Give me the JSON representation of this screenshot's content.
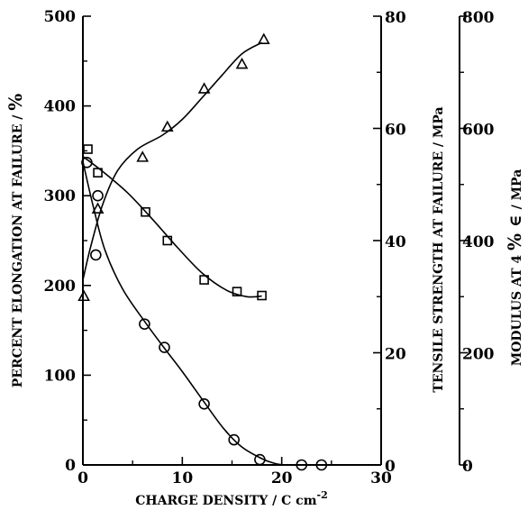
{
  "chart_data": {
    "type": "scatter",
    "xlabel": "CHARGE DENSITY / C cm",
    "xlabel_sup": "-2",
    "xlim": [
      0,
      30
    ],
    "xticks": [
      "0",
      "10",
      "20",
      "30"
    ],
    "axes": {
      "left": {
        "label_main": "PERCENT ELONGATION AT FAILURE /",
        "label_unit": "%",
        "lim": [
          0,
          500
        ],
        "ticks": [
          "0",
          "100",
          "200",
          "300",
          "400",
          "500"
        ]
      },
      "right1": {
        "label": "TENSILE STRENGTH AT FAILURE / MPa",
        "lim": [
          0,
          80
        ],
        "ticks": [
          "0",
          "20",
          "40",
          "60",
          "80"
        ]
      },
      "right2": {
        "label_main": "MODULUS AT 4",
        "label_unit": "%",
        "label_symbol": "∈",
        "label_tail": "/ MPa",
        "lim": [
          0,
          800
        ],
        "ticks": [
          "0",
          "200",
          "400",
          "600",
          "800"
        ]
      }
    },
    "series": [
      {
        "marker": "circle",
        "axis": "left",
        "points": [
          [
            0.4,
            337
          ],
          [
            1.5,
            300
          ],
          [
            1.3,
            234
          ],
          [
            6.2,
            157
          ],
          [
            8.2,
            131
          ],
          [
            12.2,
            68
          ],
          [
            15.2,
            28
          ],
          [
            17.8,
            6
          ],
          [
            22,
            0
          ],
          [
            24,
            0
          ]
        ],
        "curve": [
          [
            0,
            338
          ],
          [
            1,
            290
          ],
          [
            2.2,
            240
          ],
          [
            4,
            196
          ],
          [
            6.2,
            160
          ],
          [
            8.2,
            130
          ],
          [
            10,
            104
          ],
          [
            12.2,
            70
          ],
          [
            14.2,
            40
          ],
          [
            16,
            20
          ],
          [
            18,
            7
          ],
          [
            19.2,
            2
          ],
          [
            20.5,
            0
          ],
          [
            24,
            0
          ]
        ]
      },
      {
        "marker": "square",
        "axis": "right1",
        "points": [
          [
            0.5,
            56.3
          ],
          [
            1.5,
            52.1
          ],
          [
            6.3,
            45.1
          ],
          [
            8.5,
            40.0
          ],
          [
            12.2,
            33.0
          ],
          [
            15.5,
            30.9
          ],
          [
            18,
            30.2
          ]
        ],
        "curve": [
          [
            0,
            55
          ],
          [
            2,
            52.3
          ],
          [
            4.5,
            48.5
          ],
          [
            7,
            43.8
          ],
          [
            9.5,
            38.8
          ],
          [
            12,
            34.2
          ],
          [
            14.5,
            31.1
          ],
          [
            16.5,
            30.0
          ],
          [
            18,
            30.1
          ]
        ]
      },
      {
        "marker": "triangle",
        "axis": "right1",
        "points": [
          [
            0.1,
            30
          ],
          [
            1.5,
            45.6
          ],
          [
            6,
            54.8
          ],
          [
            8.5,
            60.2
          ],
          [
            12.2,
            67.0
          ],
          [
            16,
            71.4
          ],
          [
            18.2,
            75.8
          ]
        ],
        "curve": [
          [
            0,
            33
          ],
          [
            0.8,
            39
          ],
          [
            2,
            46.5
          ],
          [
            3.5,
            52.5
          ],
          [
            5.5,
            56.3
          ],
          [
            8,
            58.8
          ],
          [
            10,
            61.6
          ],
          [
            12,
            65.5
          ],
          [
            14,
            69.5
          ],
          [
            16,
            73.3
          ],
          [
            18,
            75.3
          ]
        ]
      }
    ]
  }
}
